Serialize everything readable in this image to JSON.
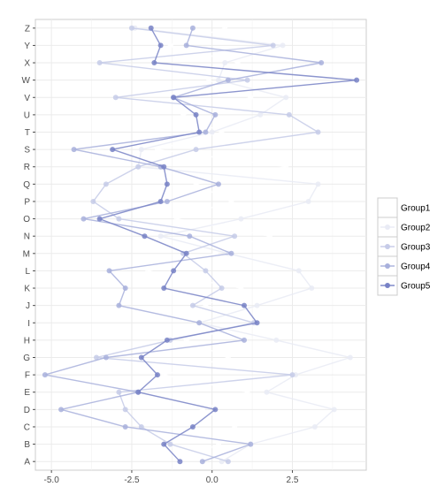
{
  "chart_data": {
    "type": "line",
    "title": "",
    "xlabel": "",
    "ylabel": "",
    "xlim": [
      -5.5,
      4.8
    ],
    "x_ticks": [
      {
        "value": -5,
        "label": "-5.0"
      },
      {
        "value": -2.5,
        "label": "-2.5"
      },
      {
        "value": 0,
        "label": "0.0"
      },
      {
        "value": 2.5,
        "label": "2.5"
      }
    ],
    "categories": [
      "A",
      "B",
      "C",
      "D",
      "E",
      "F",
      "G",
      "H",
      "I",
      "J",
      "K",
      "L",
      "M",
      "N",
      "O",
      "P",
      "Q",
      "R",
      "S",
      "T",
      "U",
      "V",
      "W",
      "X",
      "Y",
      "Z"
    ],
    "grid": true,
    "legend_position": "right",
    "series": [
      {
        "name": "Group1",
        "color": "#ffffff",
        "x": [
          -1.0,
          0.2,
          0.7,
          -0.3,
          1.1,
          -1.5,
          0.5,
          -0.8,
          1.4,
          -0.2,
          0.9,
          -2.0,
          0.1,
          1.8,
          -1.1,
          0.6,
          -0.5,
          2.3,
          -1.7,
          0.3,
          -0.9,
          1.2,
          -0.1,
          0.8,
          -1.3,
          0.4
        ],
        "y": [
          "A",
          "B",
          "C",
          "D",
          "E",
          "F",
          "G",
          "H",
          "I",
          "J",
          "K",
          "L",
          "M",
          "N",
          "O",
          "P",
          "Q",
          "R",
          "S",
          "T",
          "U",
          "V",
          "W",
          "X",
          "Y",
          "Z"
        ]
      },
      {
        "name": "Group2",
        "color": "#e9ebf5",
        "x": [
          0.3,
          1.2,
          3.2,
          3.8,
          1.7,
          2.6,
          4.3,
          2.0,
          -0.4,
          1.4,
          3.1,
          2.7,
          0.5,
          -1.6,
          0.9,
          3.0,
          3.3,
          -2.3,
          -2.2,
          0.0,
          1.5,
          2.3,
          0.2,
          0.4,
          2.2,
          -2.4
        ],
        "y": [
          "A",
          "B",
          "C",
          "D",
          "E",
          "F",
          "G",
          "H",
          "I",
          "J",
          "K",
          "L",
          "M",
          "N",
          "O",
          "P",
          "Q",
          "R",
          "S",
          "T",
          "U",
          "V",
          "W",
          "X",
          "Y",
          "Z"
        ]
      },
      {
        "name": "Group3",
        "color": "#c6cbe8",
        "x": [
          0.5,
          -1.3,
          -2.2,
          -2.7,
          -2.9,
          2.5,
          -3.6,
          -1.3,
          1.3,
          -0.6,
          0.3,
          -0.2,
          -0.9,
          0.7,
          -2.9,
          -3.7,
          -3.3,
          -2.3,
          -0.5,
          3.3,
          2.4,
          -3.0,
          1.1,
          -3.5,
          1.9,
          -2.5
        ],
        "y": [
          "A",
          "B",
          "C",
          "D",
          "E",
          "F",
          "G",
          "H",
          "I",
          "J",
          "K",
          "L",
          "M",
          "N",
          "O",
          "P",
          "Q",
          "R",
          "S",
          "T",
          "U",
          "V",
          "W",
          "X",
          "Y",
          "Z"
        ]
      },
      {
        "name": "Group4",
        "color": "#a8b0dc",
        "x": [
          -0.3,
          1.2,
          -2.7,
          -4.7,
          -2.3,
          -5.2,
          -3.3,
          1.0,
          -0.4,
          -2.9,
          -2.7,
          -3.2,
          0.6,
          -0.7,
          -4.0,
          -1.4,
          0.2,
          -1.6,
          -4.3,
          -0.2,
          0.1,
          -1.2,
          0.5,
          3.4,
          -0.8,
          -0.6
        ],
        "y": [
          "A",
          "B",
          "C",
          "D",
          "E",
          "F",
          "G",
          "H",
          "I",
          "J",
          "K",
          "L",
          "M",
          "N",
          "O",
          "P",
          "Q",
          "R",
          "S",
          "T",
          "U",
          "V",
          "W",
          "X",
          "Y",
          "Z"
        ]
      },
      {
        "name": "Group5",
        "color": "#7882c6",
        "x": [
          -1.0,
          -1.5,
          -0.6,
          0.1,
          -2.3,
          -1.7,
          -2.2,
          -1.4,
          1.4,
          1.0,
          -1.5,
          -1.2,
          -0.8,
          -2.1,
          -3.5,
          -1.6,
          -1.4,
          -1.5,
          -3.1,
          -0.4,
          -0.5,
          -1.2,
          4.5,
          -1.8,
          -1.6,
          -1.9
        ],
        "y": [
          "A",
          "B",
          "C",
          "D",
          "E",
          "F",
          "G",
          "H",
          "I",
          "J",
          "K",
          "L",
          "M",
          "N",
          "O",
          "P",
          "Q",
          "R",
          "S",
          "T",
          "U",
          "V",
          "W",
          "X",
          "Y",
          "Z"
        ]
      }
    ]
  }
}
